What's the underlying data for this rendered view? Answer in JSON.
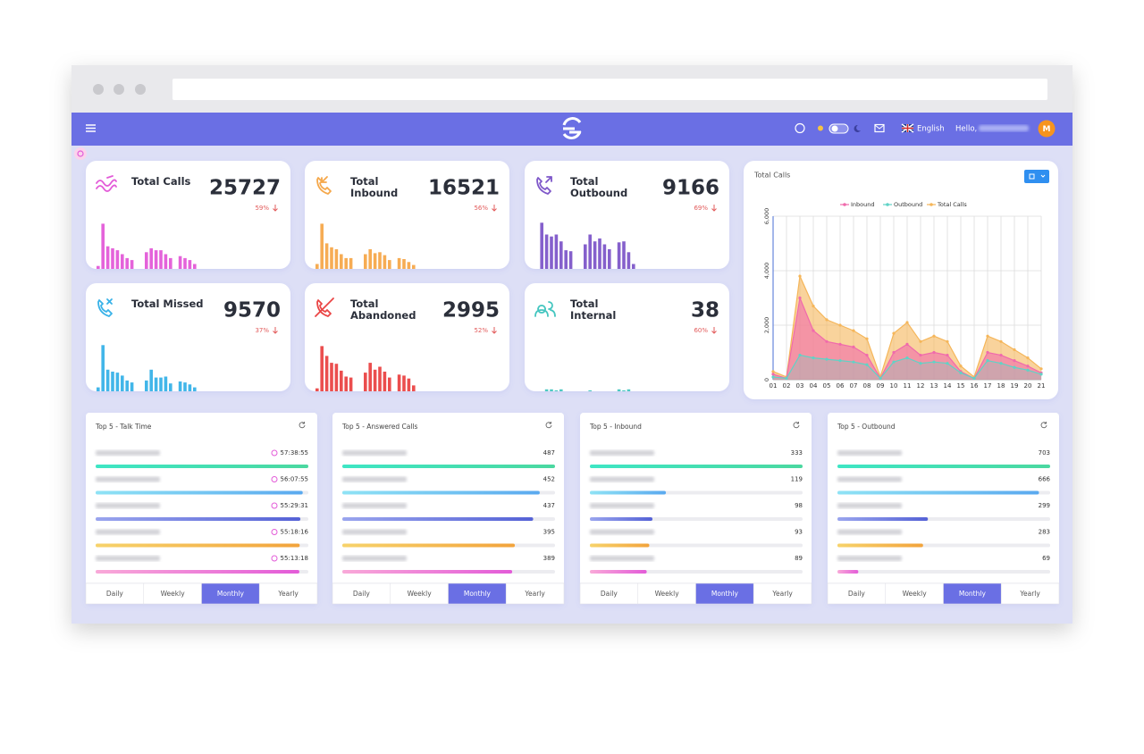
{
  "header": {
    "language": "English",
    "greeting": "Hello,",
    "avatar": "M"
  },
  "stat_cards": [
    {
      "title": "Total Calls",
      "value": 25727,
      "change": "59%",
      "color": "#e35bd8",
      "bars": [
        6,
        92,
        46,
        42,
        38,
        30,
        22,
        18,
        0,
        0,
        34,
        42,
        38,
        38,
        30,
        22,
        0,
        26,
        22,
        18,
        10
      ]
    },
    {
      "title": "Total Inbound",
      "value": 16521,
      "change": "56%",
      "color": "#f5a84b",
      "bars": [
        10,
        92,
        52,
        44,
        40,
        30,
        22,
        22,
        0,
        0,
        30,
        40,
        32,
        34,
        28,
        18,
        0,
        22,
        20,
        14,
        8
      ]
    },
    {
      "title": "Total Outbound",
      "value": 9166,
      "change": "69%",
      "color": "#7e57c9",
      "bars": [
        0,
        94,
        70,
        66,
        70,
        56,
        38,
        36,
        0,
        0,
        50,
        70,
        56,
        62,
        50,
        40,
        0,
        54,
        56,
        34,
        10
      ]
    },
    {
      "title": "Total Missed",
      "value": 9570,
      "change": "37%",
      "color": "#38b2e8",
      "bars": [
        8,
        94,
        44,
        40,
        38,
        32,
        22,
        18,
        0,
        0,
        22,
        44,
        28,
        28,
        30,
        16,
        0,
        20,
        18,
        14,
        8
      ]
    },
    {
      "title": "Total Abandoned",
      "value": 2995,
      "change": "52%",
      "color": "#ea4545",
      "bars": [
        6,
        92,
        72,
        58,
        56,
        42,
        30,
        28,
        0,
        0,
        38,
        58,
        44,
        50,
        40,
        28,
        0,
        34,
        32,
        26,
        12
      ]
    },
    {
      "title": "Total Internal",
      "value": 38,
      "change": "60%",
      "color": "#45c6c0",
      "bars": [
        0,
        0,
        4,
        4,
        2,
        4,
        0,
        0,
        0,
        0,
        0,
        2,
        0,
        0,
        0,
        0,
        0,
        4,
        2,
        4,
        0
      ]
    }
  ],
  "chart_data": {
    "type": "area",
    "title": "Total Calls",
    "categories": [
      "01",
      "02",
      "03",
      "04",
      "05",
      "06",
      "07",
      "08",
      "09",
      "10",
      "11",
      "12",
      "13",
      "14",
      "15",
      "16",
      "17",
      "18",
      "19",
      "20",
      "21"
    ],
    "series": [
      {
        "name": "Inbound",
        "color": "#f06aac",
        "values": [
          200,
          50,
          3000,
          1800,
          1400,
          1300,
          1200,
          900,
          50,
          1000,
          1300,
          900,
          1000,
          900,
          300,
          50,
          1000,
          900,
          700,
          500,
          250
        ]
      },
      {
        "name": "Outbound",
        "color": "#5fd3c6",
        "values": [
          100,
          50,
          900,
          800,
          750,
          700,
          650,
          550,
          50,
          650,
          800,
          600,
          650,
          600,
          250,
          50,
          700,
          600,
          450,
          350,
          200
        ]
      },
      {
        "name": "Total Calls",
        "color": "#f5b65a",
        "values": [
          300,
          100,
          3800,
          2700,
          2200,
          2000,
          1800,
          1500,
          100,
          1700,
          2100,
          1400,
          1600,
          1400,
          500,
          100,
          1600,
          1400,
          1100,
          800,
          400
        ]
      }
    ],
    "ylim": [
      0,
      6000
    ],
    "yticks": [
      0,
      {
        "value": 2000,
        "label": "2,000"
      },
      {
        "value": 4000,
        "label": "4,000"
      },
      {
        "value": 6000,
        "label": "6,000"
      }
    ],
    "grid": true
  },
  "top5": [
    {
      "title": "Top 5 - Talk Time",
      "rows": [
        {
          "value": "57:38:55"
        },
        {
          "value": "56:07:55"
        },
        {
          "value": "55:29:31"
        },
        {
          "value": "55:18:16"
        },
        {
          "value": "55:13:18"
        }
      ]
    },
    {
      "title": "Top 5 - Answered Calls",
      "rows": [
        {
          "value": 487
        },
        {
          "value": 452
        },
        {
          "value": 437
        },
        {
          "value": 395
        },
        {
          "value": 389
        }
      ]
    },
    {
      "title": "Top 5 - Inbound",
      "rows": [
        {
          "value": 333
        },
        {
          "value": 119
        },
        {
          "value": 98
        },
        {
          "value": 93
        },
        {
          "value": 89
        }
      ]
    },
    {
      "title": "Top 5 - Outbound",
      "rows": [
        {
          "value": 703
        },
        {
          "value": 666
        },
        {
          "value": 299
        },
        {
          "value": 283
        },
        {
          "value": 69
        }
      ]
    }
  ],
  "period_tabs": [
    "Daily",
    "Weekly",
    "Monthly",
    "Yearly"
  ],
  "active_tab": 2
}
